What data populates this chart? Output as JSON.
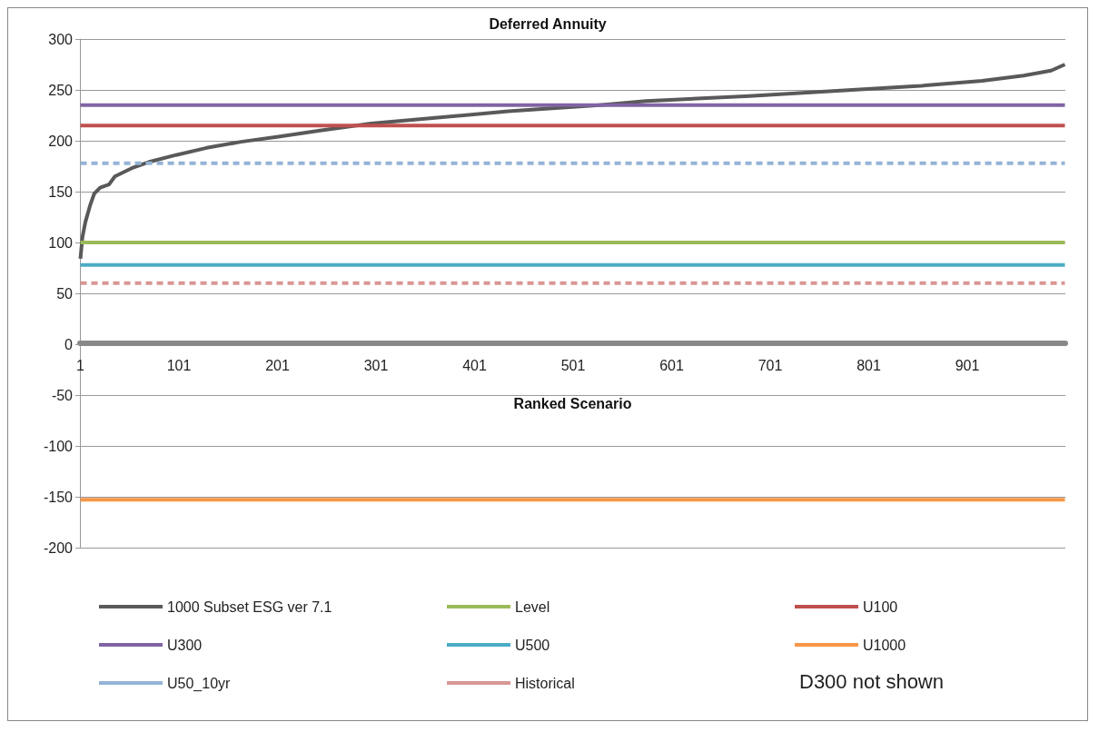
{
  "chart_data": {
    "type": "line",
    "title": "Deferred Annuity",
    "xlabel": "Ranked Scenario",
    "xlim": [
      0.5,
      1000.5
    ],
    "xticks": [
      1,
      101,
      201,
      301,
      401,
      501,
      601,
      701,
      801,
      901
    ],
    "ylim": [
      -200,
      300
    ],
    "yticks": [
      -200,
      -150,
      -100,
      -50,
      0,
      50,
      100,
      150,
      200,
      250,
      300
    ],
    "grid": "y",
    "legend": "bottom",
    "marker": "none",
    "annotations": [
      "D300 not shown"
    ],
    "series": [
      {
        "name": "1000 Subset ESG ver 7.1",
        "color": "#595959",
        "x": [
          1,
          3,
          6,
          11,
          15,
          21,
          30,
          36,
          53,
          70,
          98,
          129,
          164,
          202,
          244,
          296,
          366,
          435,
          528,
          575,
          680,
          784,
          854,
          916,
          958,
          986,
          1000
        ],
        "values": [
          84,
          105,
          120,
          137,
          148,
          154,
          157,
          165,
          173,
          179,
          186,
          193,
          199,
          204,
          210,
          217,
          223,
          229,
          235,
          239,
          244,
          250,
          254,
          259,
          264,
          269,
          275
        ]
      },
      {
        "name": "Level",
        "color": "#9bbb59",
        "x": [
          1,
          1000
        ],
        "values": [
          100,
          100
        ]
      },
      {
        "name": "U100",
        "color": "#c0504d",
        "x": [
          1,
          1000
        ],
        "values": [
          215,
          215
        ]
      },
      {
        "name": "U300",
        "color": "#8064a2",
        "x": [
          1,
          1000
        ],
        "values": [
          235,
          235
        ]
      },
      {
        "name": "U500",
        "color": "#4bacc6",
        "x": [
          1,
          1000
        ],
        "values": [
          78,
          78
        ]
      },
      {
        "name": "U1000",
        "color": "#f79646",
        "x": [
          1,
          1000
        ],
        "values": [
          -153,
          -153
        ]
      },
      {
        "name": "U50_10yr",
        "color": "#95b3d7",
        "line_style": "dashed",
        "x": [
          1,
          1000
        ],
        "values": [
          178,
          178
        ]
      },
      {
        "name": "Historical",
        "color": "#d99694",
        "line_style": "dashed",
        "x": [
          1,
          1000
        ],
        "values": [
          60,
          60
        ]
      }
    ]
  }
}
